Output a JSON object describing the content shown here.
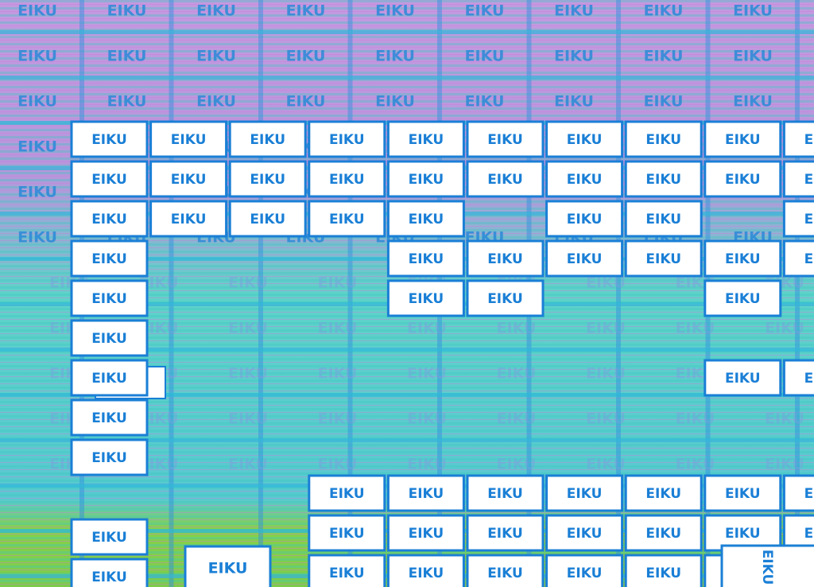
{
  "label": "EIKU"
}
